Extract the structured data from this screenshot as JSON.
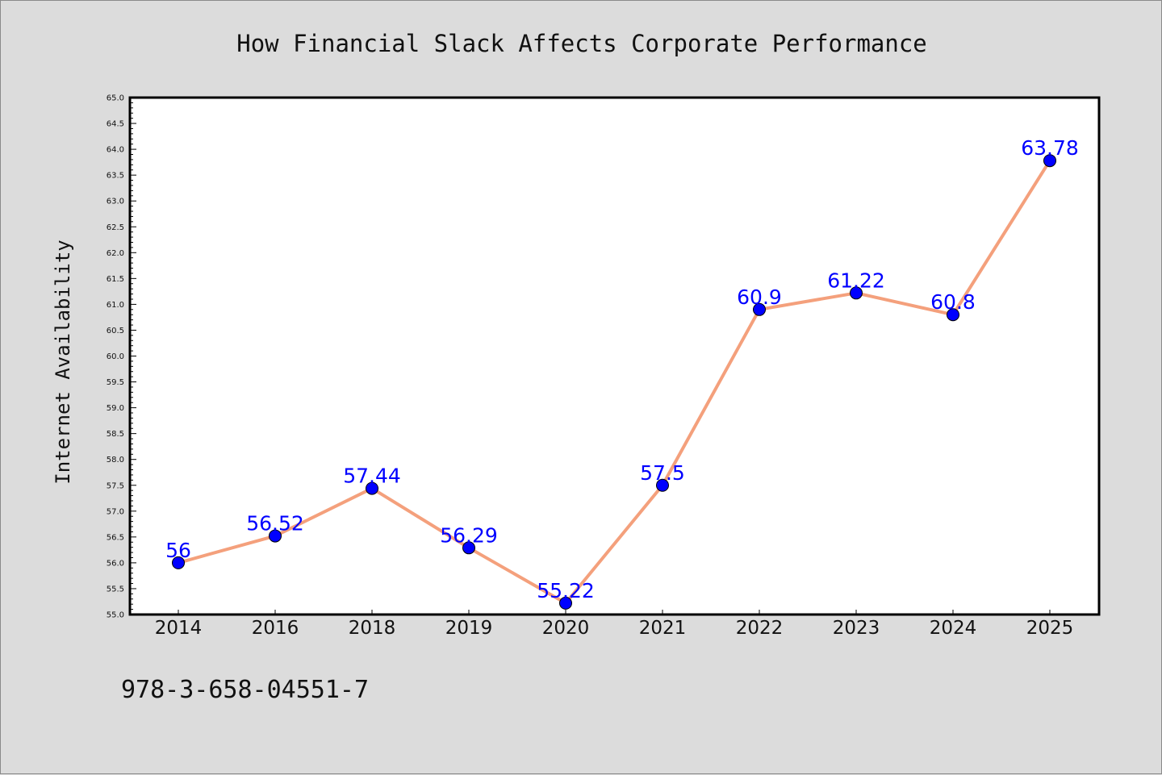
{
  "chart_data": {
    "type": "line",
    "title": "How Financial Slack Affects Corporate Performance",
    "xlabel": "",
    "ylabel": "Internet Availability",
    "categories": [
      "2014",
      "2016",
      "2018",
      "2019",
      "2020",
      "2021",
      "2022",
      "2023",
      "2024",
      "2025"
    ],
    "series": [
      {
        "values": [
          56,
          56.52,
          57.44,
          56.29,
          55.22,
          57.5,
          60.9,
          61.22,
          60.8,
          63.78
        ]
      }
    ],
    "data_labels": [
      "56",
      "56.52",
      "57.44",
      "56.29",
      "55.22",
      "57.5",
      "60.9",
      "61.22",
      "60.8",
      "63.78"
    ],
    "ylim": [
      55.0,
      65.0
    ],
    "ytick_labels": [
      "55.0",
      "55.5",
      "56.0",
      "56.5",
      "57.0",
      "57.5",
      "58.0",
      "58.5",
      "59.0",
      "59.5",
      "60.0",
      "60.5",
      "61.0",
      "61.5",
      "62.0",
      "62.5",
      "63.0",
      "63.5",
      "64.0",
      "64.5",
      "65.0"
    ],
    "grid": false,
    "line_color": "#f4a07c",
    "marker_color": "#0000ff",
    "label_color": "#0000ff"
  },
  "footer_text": "978-3-658-04551-7"
}
